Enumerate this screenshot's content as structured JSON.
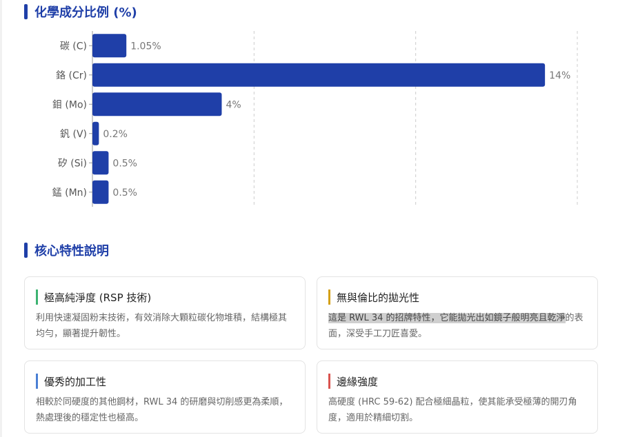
{
  "chart_section": {
    "title": "化學成分比例 (%)"
  },
  "chart_data": {
    "type": "bar",
    "orientation": "horizontal",
    "categories": [
      "碳 (C)",
      "鉻 (Cr)",
      "鉬 (Mo)",
      "釩 (V)",
      "矽 (Si)",
      "錳 (Mn)"
    ],
    "values": [
      1.05,
      14,
      4,
      0.2,
      0.5,
      0.5
    ],
    "value_labels": [
      "1.05%",
      "14%",
      "4%",
      "0.2%",
      "0.5%",
      "0.5%"
    ],
    "xlim": [
      0,
      15
    ],
    "gridlines_at": [
      5,
      10,
      15
    ],
    "grid": true,
    "bar_color": "#1f3fa8"
  },
  "features_section": {
    "title": "核心特性說明",
    "cards": [
      {
        "title": "極高純淨度 (RSP 技術)",
        "desc": "利用快速凝固粉末技術，有效消除大顆粒碳化物堆積，結構極其均勻，顯著提升韌性。",
        "accent": "#3cb371"
      },
      {
        "title": "無與倫比的拋光性",
        "desc_highlight": "這是 RWL 34 的招牌特性，它能拋光出如鏡子般明亮且乾淨",
        "desc_rest": "的表面，深受手工刀匠喜愛。",
        "accent": "#d4a017"
      },
      {
        "title": "優秀的加工性",
        "desc": "相較於同硬度的其他鋼材，RWL 34 的研磨與切削感更為柔順，熱處理後的穩定性也極高。",
        "accent": "#4a7fd4"
      },
      {
        "title": "邊緣強度",
        "desc": "高硬度 (HRC 59-62) 配合極細晶粒，使其能承受極薄的開刃角度，適用於精細切割。",
        "accent": "#d9534f"
      }
    ]
  }
}
